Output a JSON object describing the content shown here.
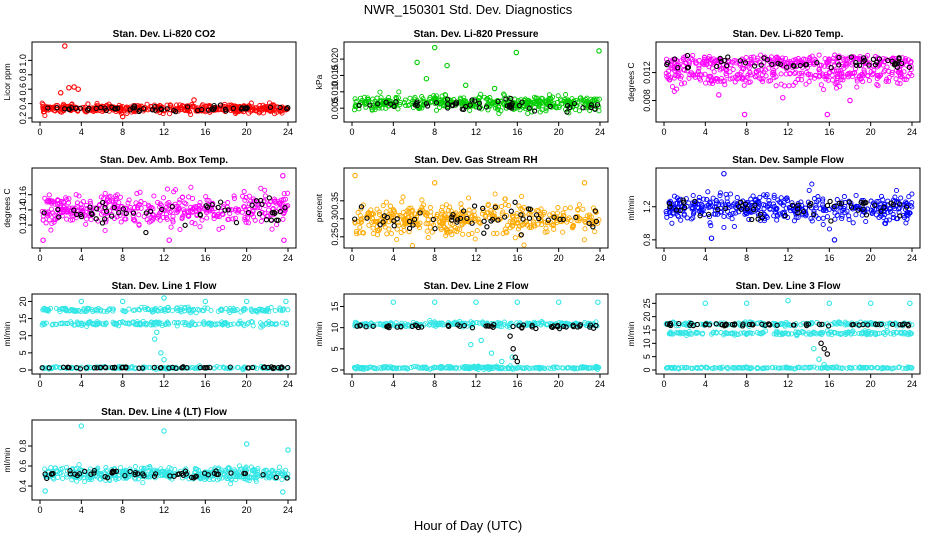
{
  "figure": {
    "title": "NWR_150301  Std. Dev. Diagnostics",
    "xlabel": "Hour of Day (UTC)"
  },
  "chart_data": [
    {
      "type": "scatter",
      "title": "Stan. Dev. Li-820 CO2",
      "ylabel": "Licor ppm",
      "x_ticks": [
        "0",
        "4",
        "8",
        "12",
        "16",
        "20",
        "24"
      ],
      "xlim": [
        0,
        24
      ],
      "ylim": [
        0.2,
        1.2
      ],
      "y_ticks": [
        {
          "v": 0.2,
          "label": "0.2"
        },
        {
          "v": 0.4,
          "label": "0.4"
        },
        {
          "v": 0.6,
          "label": "0.6"
        },
        {
          "v": 0.8,
          "label": "0.8"
        },
        {
          "v": 1.0,
          "label": "1.0"
        }
      ],
      "series": [
        {
          "color": "#ff0000",
          "bands": [
            {
              "center": 0.33,
              "spread": 0.05
            }
          ],
          "outliers": [
            [
              2.4,
              1.2
            ],
            [
              2.0,
              0.55
            ],
            [
              2.8,
              0.62
            ],
            [
              3.3,
              0.63
            ],
            [
              3.7,
              0.6
            ],
            [
              8.0,
              0.22
            ],
            [
              14.9,
              0.45
            ]
          ]
        },
        {
          "color": "#000000",
          "sparse": true,
          "bands": [
            {
              "center": 0.33,
              "spread": 0.04
            }
          ]
        }
      ]
    },
    {
      "type": "scatter",
      "title": "Stan. Dev. Li-820 Pressure",
      "ylabel": "kPa",
      "x_ticks": [
        "0",
        "4",
        "8",
        "12",
        "16",
        "20",
        "24"
      ],
      "xlim": [
        0,
        24
      ],
      "ylim": [
        0.002,
        0.024
      ],
      "y_ticks": [
        {
          "v": 0.005,
          "label": "0.005"
        },
        {
          "v": 0.01,
          "label": "0.010"
        },
        {
          "v": 0.015,
          "label": "0.015"
        },
        {
          "v": 0.02,
          "label": "0.020"
        }
      ],
      "series": [
        {
          "color": "#00cc00",
          "bands": [
            {
              "center": 0.0065,
              "spread": 0.002
            }
          ],
          "outliers": [
            [
              8.0,
              0.0235
            ],
            [
              6.3,
              0.019
            ],
            [
              7.2,
              0.014
            ],
            [
              9.2,
              0.018
            ],
            [
              15.9,
              0.022
            ],
            [
              23.9,
              0.0225
            ],
            [
              11.0,
              0.012
            ],
            [
              13.8,
              0.011
            ]
          ]
        },
        {
          "color": "#000000",
          "sparse": true,
          "bands": [
            {
              "center": 0.006,
              "spread": 0.0015
            }
          ]
        }
      ]
    },
    {
      "type": "scatter",
      "title": "Stan. Dev. Li-820 Temp.",
      "ylabel": "degrees C",
      "x_ticks": [
        "0",
        "4",
        "8",
        "12",
        "16",
        "20",
        "24"
      ],
      "xlim": [
        0,
        24
      ],
      "ylim": [
        0.0055,
        0.0158
      ],
      "y_ticks": [
        {
          "v": 0.008,
          "label": "0.008"
        },
        {
          "v": 0.012,
          "label": "0.012"
        }
      ],
      "series": [
        {
          "color": "#ff00ff",
          "bands": [
            {
              "center": 0.0135,
              "spread": 0.0008
            },
            {
              "center": 0.0115,
              "spread": 0.0012
            }
          ],
          "outliers": [
            [
              7.8,
              0.006
            ],
            [
              15.8,
              0.006
            ],
            [
              5.3,
              0.0088
            ],
            [
              11.5,
              0.0084
            ],
            [
              18.0,
              0.008
            ]
          ]
        },
        {
          "color": "#000000",
          "sparse": true,
          "bands": [
            {
              "center": 0.0133,
              "spread": 0.0009
            }
          ]
        }
      ]
    },
    {
      "type": "scatter",
      "title": "Stan. Dev. Amb. Box Temp.",
      "ylabel": "degrees C",
      "x_ticks": [
        "0",
        "4",
        "8",
        "12",
        "16",
        "20",
        "24"
      ],
      "xlim": [
        0,
        24
      ],
      "ylim": [
        0.095,
        0.19
      ],
      "y_ticks": [
        {
          "v": 0.12,
          "label": "0.12"
        },
        {
          "v": 0.14,
          "label": "0.14"
        },
        {
          "v": 0.16,
          "label": "0.16"
        }
      ],
      "series": [
        {
          "color": "#ff00ff",
          "bands": [
            {
              "center": 0.14,
              "spread": 0.02
            }
          ],
          "outliers": [
            [
              23.5,
              0.185
            ],
            [
              0.3,
              0.1
            ],
            [
              23.6,
              0.1
            ],
            [
              12.5,
              0.1
            ]
          ]
        },
        {
          "color": "#000000",
          "sparse": true,
          "bands": [
            {
              "center": 0.135,
              "spread": 0.015
            }
          ]
        }
      ]
    },
    {
      "type": "scatter",
      "title": "Stan. Dev. Gas Stream RH",
      "ylabel": "percent",
      "x_ticks": [
        "0",
        "4",
        "8",
        "12",
        "16",
        "20",
        "24"
      ],
      "xlim": [
        0,
        24
      ],
      "ylim": [
        0.23,
        0.43
      ],
      "y_ticks": [
        {
          "v": 0.25,
          "label": "0.25"
        },
        {
          "v": 0.3,
          "label": "0.30"
        },
        {
          "v": 0.35,
          "label": "0.35"
        }
      ],
      "series": [
        {
          "color": "#ffaa00",
          "bands": [
            {
              "center": 0.3,
              "spread": 0.04
            }
          ],
          "outliers": [
            [
              0.3,
              0.42
            ],
            [
              8.0,
              0.4
            ],
            [
              22.5,
              0.4
            ]
          ]
        },
        {
          "color": "#000000",
          "sparse": true,
          "bands": [
            {
              "center": 0.3,
              "spread": 0.035
            }
          ]
        }
      ]
    },
    {
      "type": "scatter",
      "title": "Stan. Dev. Sample Flow",
      "ylabel": "ml/min",
      "x_ticks": [
        "0",
        "4",
        "8",
        "12",
        "16",
        "20",
        "24"
      ],
      "xlim": [
        0,
        24
      ],
      "ylim": [
        0.75,
        1.62
      ],
      "y_ticks": [
        {
          "v": 0.8,
          "label": "0.8"
        },
        {
          "v": 1.2,
          "label": "1.2"
        }
      ],
      "series": [
        {
          "color": "#0000ff",
          "bands": [
            {
              "center": 1.18,
              "spread": 0.15
            }
          ],
          "outliers": [
            [
              5.8,
              1.6
            ],
            [
              4.6,
              0.82
            ],
            [
              16.5,
              0.8
            ]
          ]
        },
        {
          "color": "#000000",
          "sparse": true,
          "bands": [
            {
              "center": 1.18,
              "spread": 0.12
            }
          ]
        }
      ]
    },
    {
      "type": "scatter",
      "title": "Stan. Dev. Line 1 Flow",
      "ylabel": "ml/min",
      "x_ticks": [
        "0",
        "4",
        "8",
        "12",
        "16",
        "20",
        "24"
      ],
      "xlim": [
        0,
        24
      ],
      "ylim": [
        0,
        21
      ],
      "y_ticks": [
        {
          "v": 0,
          "label": "0"
        },
        {
          "v": 5,
          "label": "5"
        },
        {
          "v": 10,
          "label": "10"
        },
        {
          "v": 15,
          "label": "15"
        },
        {
          "v": 20,
          "label": "20"
        }
      ],
      "series": [
        {
          "color": "#33e6e6",
          "bands": [
            {
              "center": 17.5,
              "spread": 0.6
            },
            {
              "center": 13.5,
              "spread": 0.6
            },
            {
              "center": 0.6,
              "spread": 0.3
            }
          ],
          "outliers": [
            [
              4.0,
              20
            ],
            [
              8.0,
              20
            ],
            [
              12.0,
              21
            ],
            [
              16.0,
              20
            ],
            [
              20.0,
              20
            ],
            [
              23.8,
              20
            ],
            [
              11.1,
              9
            ],
            [
              11.3,
              11
            ],
            [
              11.7,
              5
            ],
            [
              12.0,
              3
            ]
          ]
        },
        {
          "color": "#000000",
          "sparse": true,
          "bands": [
            {
              "center": 0.7,
              "spread": 0.2
            }
          ]
        }
      ]
    },
    {
      "type": "scatter",
      "title": "Stan. Dev. Line 2 Flow",
      "ylabel": "ml/min",
      "x_ticks": [
        "0",
        "4",
        "8",
        "12",
        "16",
        "20",
        "24"
      ],
      "xlim": [
        0,
        24
      ],
      "ylim": [
        0,
        17
      ],
      "y_ticks": [
        {
          "v": 0,
          "label": "0"
        },
        {
          "v": 5,
          "label": "5"
        },
        {
          "v": 10,
          "label": "10"
        },
        {
          "v": 15,
          "label": "15"
        }
      ],
      "series": [
        {
          "color": "#33e6e6",
          "bands": [
            {
              "center": 10.8,
              "spread": 0.5
            },
            {
              "center": 0.5,
              "spread": 0.3
            }
          ],
          "outliers": [
            [
              4.0,
              16
            ],
            [
              8.0,
              16
            ],
            [
              12.0,
              16
            ],
            [
              16.0,
              16
            ],
            [
              20.0,
              16
            ],
            [
              23.8,
              16
            ],
            [
              11.5,
              6
            ],
            [
              12.5,
              7
            ],
            [
              13.5,
              4
            ],
            [
              14.5,
              2
            ],
            [
              15.5,
              3
            ]
          ]
        },
        {
          "color": "#000000",
          "sparse": true,
          "bands": [
            {
              "center": 10.3,
              "spread": 0.4
            }
          ],
          "outliers": [
            [
              15.3,
              8
            ],
            [
              15.6,
              5
            ],
            [
              15.8,
              3
            ],
            [
              16.0,
              2
            ]
          ]
        }
      ]
    },
    {
      "type": "scatter",
      "title": "Stan. Dev. Line 3 Flow",
      "ylabel": "ml/min",
      "x_ticks": [
        "0",
        "4",
        "8",
        "12",
        "16",
        "20",
        "24"
      ],
      "xlim": [
        0,
        24
      ],
      "ylim": [
        0,
        27
      ],
      "y_ticks": [
        {
          "v": 0,
          "label": "0"
        },
        {
          "v": 5,
          "label": "5"
        },
        {
          "v": 10,
          "label": "10"
        },
        {
          "v": 15,
          "label": "15"
        },
        {
          "v": 20,
          "label": "20"
        },
        {
          "v": 25,
          "label": "25"
        }
      ],
      "series": [
        {
          "color": "#33e6e6",
          "bands": [
            {
              "center": 17.2,
              "spread": 0.6
            },
            {
              "center": 13.8,
              "spread": 0.6
            },
            {
              "center": 0.8,
              "spread": 0.3
            }
          ],
          "outliers": [
            [
              4.0,
              25
            ],
            [
              8.0,
              25
            ],
            [
              12.0,
              26
            ],
            [
              16.0,
              25
            ],
            [
              20.0,
              25
            ],
            [
              23.8,
              25
            ],
            [
              14.5,
              8
            ],
            [
              15.0,
              4
            ],
            [
              15.5,
              2
            ]
          ]
        },
        {
          "color": "#000000",
          "sparse": true,
          "bands": [
            {
              "center": 17.0,
              "spread": 0.4
            }
          ],
          "outliers": [
            [
              15.2,
              10
            ],
            [
              15.5,
              8
            ],
            [
              15.8,
              6
            ]
          ]
        }
      ]
    },
    {
      "type": "scatter",
      "title": "Stan. Dev. Line 4 (LT) Flow",
      "ylabel": "ml/min",
      "x_ticks": [
        "0",
        "4",
        "8",
        "12",
        "16",
        "20",
        "24"
      ],
      "xlim": [
        0,
        24
      ],
      "ylim": [
        0.3,
        1.02
      ],
      "y_ticks": [
        {
          "v": 0.4,
          "label": "0.4"
        },
        {
          "v": 0.6,
          "label": "0.6"
        },
        {
          "v": 0.8,
          "label": "0.8"
        }
      ],
      "series": [
        {
          "color": "#33e6e6",
          "bands": [
            {
              "center": 0.52,
              "spread": 0.06
            }
          ],
          "outliers": [
            [
              4.0,
              1.0
            ],
            [
              12.0,
              0.95
            ],
            [
              20.0,
              0.82
            ],
            [
              24.0,
              0.76
            ],
            [
              0.5,
              0.35
            ],
            [
              23.5,
              0.34
            ]
          ]
        },
        {
          "color": "#000000",
          "sparse": true,
          "bands": [
            {
              "center": 0.52,
              "spread": 0.04
            }
          ]
        }
      ]
    }
  ]
}
